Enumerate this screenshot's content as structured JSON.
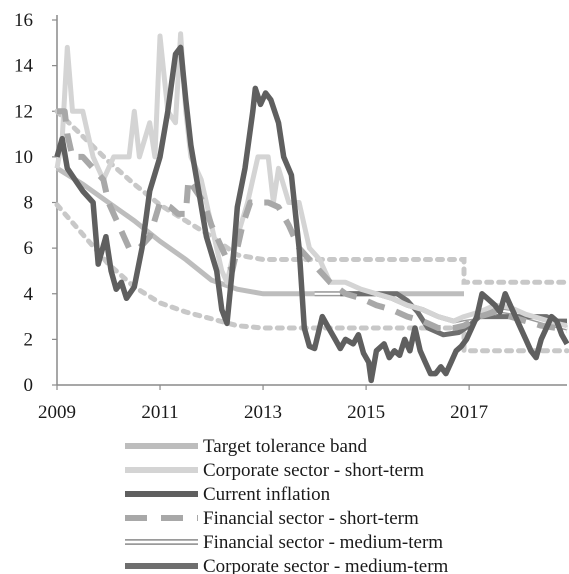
{
  "chart_data": {
    "type": "line",
    "title": "",
    "xlabel": "",
    "ylabel": "",
    "xlim": [
      2009.0,
      2018.9
    ],
    "ylim": [
      0,
      16
    ],
    "x_ticks": [
      "2009",
      "2011",
      "2013",
      "2015",
      "2017"
    ],
    "y_ticks": [
      "0",
      "2",
      "4",
      "6",
      "8",
      "10",
      "12",
      "14",
      "16"
    ],
    "grid": false,
    "legend_position": "bottom",
    "series": [
      {
        "name": "Target tolerance band",
        "style": "band",
        "color": "#bdbdbd",
        "dash_color": "#c8c8c8",
        "center": [
          [
            2009.0,
            9.5
          ],
          [
            2009.5,
            8.8
          ],
          [
            2010.0,
            8.0
          ],
          [
            2010.5,
            7.2
          ],
          [
            2011.0,
            6.3
          ],
          [
            2011.5,
            5.5
          ],
          [
            2012.0,
            4.6
          ],
          [
            2012.5,
            4.2
          ],
          [
            2013.0,
            4.0
          ],
          [
            2014.0,
            4.0
          ],
          [
            2015.0,
            4.0
          ],
          [
            2016.0,
            4.0
          ],
          [
            2016.9,
            4.0
          ]
        ],
        "upper": [
          [
            2009.0,
            12.0
          ],
          [
            2009.5,
            10.9
          ],
          [
            2010.0,
            9.8
          ],
          [
            2010.5,
            8.8
          ],
          [
            2011.0,
            7.9
          ],
          [
            2011.5,
            7.2
          ],
          [
            2012.0,
            6.5
          ],
          [
            2012.5,
            5.7
          ],
          [
            2013.0,
            5.5
          ],
          [
            2014.0,
            5.5
          ],
          [
            2015.0,
            5.5
          ],
          [
            2016.0,
            5.5
          ],
          [
            2016.9,
            5.5
          ],
          [
            2016.9,
            4.5
          ],
          [
            2018.9,
            4.5
          ]
        ],
        "lower": [
          [
            2009.0,
            7.9
          ],
          [
            2009.5,
            6.6
          ],
          [
            2010.0,
            5.3
          ],
          [
            2010.5,
            4.3
          ],
          [
            2011.0,
            3.6
          ],
          [
            2011.5,
            3.2
          ],
          [
            2012.0,
            2.9
          ],
          [
            2012.5,
            2.6
          ],
          [
            2013.0,
            2.5
          ],
          [
            2014.0,
            2.5
          ],
          [
            2015.0,
            2.5
          ],
          [
            2016.0,
            2.5
          ],
          [
            2016.9,
            2.5
          ],
          [
            2016.9,
            1.5
          ],
          [
            2018.9,
            1.5
          ]
        ]
      },
      {
        "name": "Corporate sector - short-term",
        "color": "#d4d4d4",
        "points": [
          [
            2009.0,
            9.5
          ],
          [
            2009.1,
            10.8
          ],
          [
            2009.2,
            14.8
          ],
          [
            2009.3,
            12.0
          ],
          [
            2009.5,
            12.0
          ],
          [
            2009.6,
            11.0
          ],
          [
            2009.7,
            10.0
          ],
          [
            2009.8,
            9.5
          ],
          [
            2009.9,
            9.0
          ],
          [
            2010.1,
            10.0
          ],
          [
            2010.4,
            10.0
          ],
          [
            2010.5,
            12.0
          ],
          [
            2010.6,
            10.0
          ],
          [
            2010.8,
            11.5
          ],
          [
            2010.9,
            10.0
          ],
          [
            2011.0,
            15.3
          ],
          [
            2011.15,
            12.0
          ],
          [
            2011.3,
            11.5
          ],
          [
            2011.4,
            15.4
          ],
          [
            2011.5,
            12.0
          ],
          [
            2011.6,
            10.0
          ],
          [
            2011.8,
            9.0
          ],
          [
            2012.0,
            7.0
          ],
          [
            2012.2,
            5.0
          ],
          [
            2012.3,
            4.5
          ],
          [
            2012.5,
            6.5
          ],
          [
            2012.7,
            8.0
          ],
          [
            2012.9,
            10.0
          ],
          [
            2013.1,
            10.0
          ],
          [
            2013.2,
            8.0
          ],
          [
            2013.3,
            9.5
          ],
          [
            2013.5,
            8.0
          ],
          [
            2013.7,
            8.0
          ],
          [
            2013.9,
            6.0
          ],
          [
            2014.1,
            5.5
          ],
          [
            2014.3,
            4.5
          ],
          [
            2014.6,
            4.5
          ],
          [
            2014.9,
            4.2
          ],
          [
            2015.2,
            4.0
          ],
          [
            2015.5,
            3.8
          ],
          [
            2015.8,
            3.5
          ],
          [
            2016.1,
            3.3
          ],
          [
            2016.4,
            3.0
          ],
          [
            2016.7,
            2.8
          ],
          [
            2016.9,
            3.0
          ],
          [
            2017.2,
            3.2
          ],
          [
            2017.5,
            3.5
          ],
          [
            2017.8,
            3.4
          ],
          [
            2018.1,
            3.1
          ],
          [
            2018.4,
            2.9
          ],
          [
            2018.7,
            2.7
          ],
          [
            2018.9,
            2.6
          ]
        ]
      },
      {
        "name": "Current inflation",
        "color": "#5f5f5f",
        "points": [
          [
            2009.0,
            10.0
          ],
          [
            2009.1,
            10.8
          ],
          [
            2009.2,
            9.5
          ],
          [
            2009.35,
            9.0
          ],
          [
            2009.5,
            8.5
          ],
          [
            2009.7,
            8.0
          ],
          [
            2009.8,
            5.3
          ],
          [
            2009.95,
            6.5
          ],
          [
            2010.05,
            5.0
          ],
          [
            2010.15,
            4.2
          ],
          [
            2010.25,
            4.5
          ],
          [
            2010.35,
            3.8
          ],
          [
            2010.5,
            4.3
          ],
          [
            2010.65,
            6.0
          ],
          [
            2010.8,
            8.5
          ],
          [
            2011.0,
            10.0
          ],
          [
            2011.15,
            12.0
          ],
          [
            2011.3,
            14.5
          ],
          [
            2011.4,
            14.8
          ],
          [
            2011.5,
            12.5
          ],
          [
            2011.6,
            10.5
          ],
          [
            2011.75,
            8.5
          ],
          [
            2011.9,
            6.5
          ],
          [
            2012.1,
            5.0
          ],
          [
            2012.2,
            3.3
          ],
          [
            2012.3,
            2.7
          ],
          [
            2012.4,
            5.0
          ],
          [
            2012.5,
            7.8
          ],
          [
            2012.65,
            9.5
          ],
          [
            2012.8,
            12.0
          ],
          [
            2012.85,
            13.0
          ],
          [
            2012.95,
            12.3
          ],
          [
            2013.05,
            12.8
          ],
          [
            2013.15,
            12.5
          ],
          [
            2013.3,
            11.5
          ],
          [
            2013.4,
            10.0
          ],
          [
            2013.55,
            9.2
          ],
          [
            2013.7,
            6.0
          ],
          [
            2013.8,
            2.5
          ],
          [
            2013.9,
            1.7
          ],
          [
            2014.0,
            1.6
          ],
          [
            2014.15,
            3.0
          ],
          [
            2014.3,
            2.4
          ],
          [
            2014.4,
            2.0
          ],
          [
            2014.5,
            1.6
          ],
          [
            2014.6,
            2.0
          ],
          [
            2014.75,
            1.8
          ],
          [
            2014.85,
            2.2
          ],
          [
            2014.95,
            1.4
          ],
          [
            2015.05,
            1.0
          ],
          [
            2015.1,
            0.2
          ],
          [
            2015.2,
            1.5
          ],
          [
            2015.35,
            1.8
          ],
          [
            2015.45,
            1.2
          ],
          [
            2015.55,
            1.5
          ],
          [
            2015.65,
            1.3
          ],
          [
            2015.75,
            2.0
          ],
          [
            2015.85,
            1.5
          ],
          [
            2015.95,
            2.5
          ],
          [
            2016.05,
            1.5
          ],
          [
            2016.15,
            1.0
          ],
          [
            2016.25,
            0.5
          ],
          [
            2016.35,
            0.5
          ],
          [
            2016.45,
            0.8
          ],
          [
            2016.55,
            0.5
          ],
          [
            2016.65,
            1.0
          ],
          [
            2016.75,
            1.5
          ],
          [
            2016.85,
            1.7
          ],
          [
            2016.95,
            2.0
          ],
          [
            2017.05,
            2.5
          ],
          [
            2017.15,
            3.0
          ],
          [
            2017.25,
            4.0
          ],
          [
            2017.35,
            3.8
          ],
          [
            2017.5,
            3.5
          ],
          [
            2017.6,
            3.2
          ],
          [
            2017.7,
            4.0
          ],
          [
            2017.8,
            3.5
          ],
          [
            2017.9,
            3.0
          ],
          [
            2018.0,
            2.5
          ],
          [
            2018.1,
            2.0
          ],
          [
            2018.2,
            1.5
          ],
          [
            2018.3,
            1.2
          ],
          [
            2018.4,
            2.0
          ],
          [
            2018.5,
            2.5
          ],
          [
            2018.6,
            3.0
          ],
          [
            2018.7,
            2.8
          ],
          [
            2018.8,
            2.2
          ],
          [
            2018.9,
            1.8
          ]
        ]
      },
      {
        "name": "Financial sector - short-term",
        "color": "#a8a8a8",
        "points": [
          [
            2009.0,
            12.0
          ],
          [
            2009.15,
            12.0
          ],
          [
            2009.2,
            11.0
          ],
          [
            2009.3,
            10.0
          ],
          [
            2009.5,
            10.0
          ],
          [
            2009.7,
            9.5
          ],
          [
            2009.9,
            9.0
          ],
          [
            2010.0,
            8.0
          ],
          [
            2010.2,
            7.0
          ],
          [
            2010.4,
            6.0
          ],
          [
            2010.6,
            6.0
          ],
          [
            2010.8,
            6.5
          ],
          [
            2011.0,
            8.0
          ],
          [
            2011.2,
            7.8
          ],
          [
            2011.35,
            7.5
          ],
          [
            2011.5,
            7.5
          ],
          [
            2011.55,
            9.0
          ],
          [
            2011.7,
            8.5
          ],
          [
            2011.85,
            8.0
          ],
          [
            2012.0,
            7.0
          ],
          [
            2012.2,
            6.0
          ],
          [
            2012.4,
            5.0
          ],
          [
            2012.6,
            7.0
          ],
          [
            2012.75,
            8.0
          ],
          [
            2012.9,
            8.0
          ],
          [
            2013.1,
            8.0
          ],
          [
            2013.3,
            7.8
          ],
          [
            2013.5,
            7.0
          ],
          [
            2013.7,
            6.0
          ],
          [
            2013.9,
            5.5
          ],
          [
            2014.1,
            5.0
          ],
          [
            2014.3,
            4.5
          ],
          [
            2014.6,
            4.0
          ],
          [
            2014.9,
            3.8
          ],
          [
            2015.2,
            3.5
          ],
          [
            2015.5,
            3.3
          ],
          [
            2015.8,
            3.0
          ],
          [
            2016.1,
            2.8
          ],
          [
            2016.4,
            2.5
          ],
          [
            2016.7,
            2.5
          ],
          [
            2016.9,
            2.6
          ],
          [
            2017.2,
            3.0
          ],
          [
            2017.5,
            3.2
          ],
          [
            2017.8,
            3.0
          ],
          [
            2018.1,
            2.8
          ],
          [
            2018.4,
            2.6
          ],
          [
            2018.7,
            2.5
          ],
          [
            2018.9,
            2.4
          ]
        ]
      },
      {
        "name": "Financial sector - medium-term",
        "color": "#9a9a9a",
        "points": [
          [
            2014.0,
            4.0
          ],
          [
            2014.3,
            4.0
          ],
          [
            2014.6,
            4.0
          ],
          [
            2014.9,
            4.0
          ],
          [
            2015.2,
            4.0
          ],
          [
            2015.5,
            3.8
          ],
          [
            2015.8,
            3.5
          ],
          [
            2016.1,
            3.3
          ],
          [
            2016.4,
            3.0
          ],
          [
            2016.7,
            2.8
          ],
          [
            2016.9,
            2.9
          ],
          [
            2017.2,
            3.0
          ],
          [
            2017.5,
            3.3
          ],
          [
            2017.8,
            3.2
          ],
          [
            2018.1,
            3.0
          ],
          [
            2018.4,
            2.8
          ],
          [
            2018.7,
            2.6
          ],
          [
            2018.9,
            2.5
          ]
        ]
      },
      {
        "name": "Corporate sector - medium-term",
        "color": "#6e6e6e",
        "points": [
          [
            2014.5,
            4.0
          ],
          [
            2014.8,
            4.0
          ],
          [
            2015.0,
            4.0
          ],
          [
            2015.3,
            4.0
          ],
          [
            2015.6,
            4.0
          ],
          [
            2015.8,
            3.7
          ],
          [
            2016.0,
            3.2
          ],
          [
            2016.2,
            2.5
          ],
          [
            2016.5,
            2.2
          ],
          [
            2016.8,
            2.3
          ],
          [
            2017.0,
            2.6
          ],
          [
            2017.2,
            3.0
          ],
          [
            2017.5,
            3.0
          ],
          [
            2017.8,
            3.0
          ],
          [
            2018.0,
            3.0
          ],
          [
            2018.3,
            3.0
          ],
          [
            2018.5,
            3.0
          ],
          [
            2018.7,
            2.8
          ],
          [
            2018.9,
            2.8
          ]
        ]
      }
    ]
  }
}
